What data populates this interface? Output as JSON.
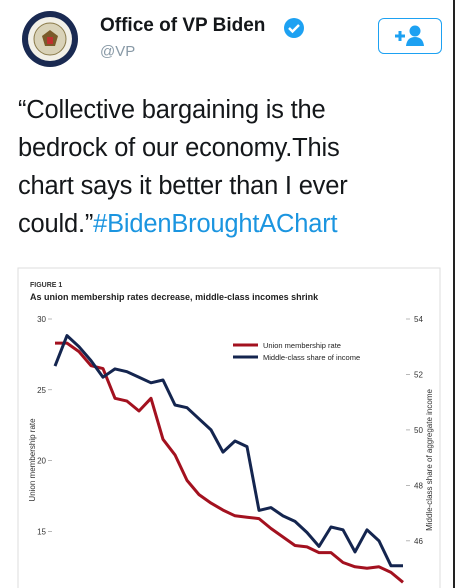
{
  "tweet": {
    "name": "Office of VP Biden",
    "handle": "@VP",
    "text_lines": [
      "“Collective bargaining is the",
      "bedrock of our economy.This",
      "chart says it better than I ever",
      "could.”"
    ],
    "hashtag": "#BidenBroughtAChart"
  },
  "chart_data": {
    "type": "line",
    "figure_label": "FIGURE 1",
    "title": "As union membership rates decrease, middle-class incomes shrink",
    "ylabel": "Union membership rate",
    "y2label": "Middle-class share of aggregate income",
    "categories": [
      null,
      null,
      null,
      null,
      null,
      null,
      null,
      null,
      null,
      null,
      null,
      null,
      null,
      null,
      null,
      null,
      null,
      null,
      null,
      null,
      null,
      null,
      null,
      null,
      null,
      null,
      null,
      null,
      null,
      null
    ],
    "series": [
      {
        "name": "Union membership rate",
        "color": "#a3111f",
        "values": [
          28.3,
          28.3,
          27.7,
          26.7,
          26.5,
          24.4,
          24.2,
          23.5,
          24.4,
          21.5,
          20.4,
          18.6,
          17.6,
          17.0,
          16.5,
          16.1,
          16.0,
          15.9,
          15.2,
          14.6,
          14.0,
          13.9,
          13.5,
          13.5,
          12.8,
          12.5,
          12.4,
          12.5,
          12.1,
          11.4
        ]
      },
      {
        "name": "Middle-class share of income",
        "color": "#14254f",
        "axis": "y2",
        "values": [
          52.3,
          53.4,
          53.0,
          52.5,
          51.9,
          52.2,
          52.1,
          51.9,
          51.7,
          51.8,
          50.9,
          50.8,
          50.4,
          50.0,
          49.2,
          49.6,
          49.4,
          47.1,
          47.2,
          46.9,
          46.7,
          46.3,
          45.8,
          46.5,
          46.4,
          45.6,
          46.4,
          46.0,
          45.1,
          45.1
        ]
      }
    ],
    "ylim": [
      11,
      30
    ],
    "yticks": [
      15,
      20,
      25,
      30
    ],
    "y2lim": [
      44.3,
      54
    ],
    "y2ticks": [
      46,
      48,
      50,
      52,
      54
    ],
    "grid": false,
    "legend": "upper right"
  }
}
